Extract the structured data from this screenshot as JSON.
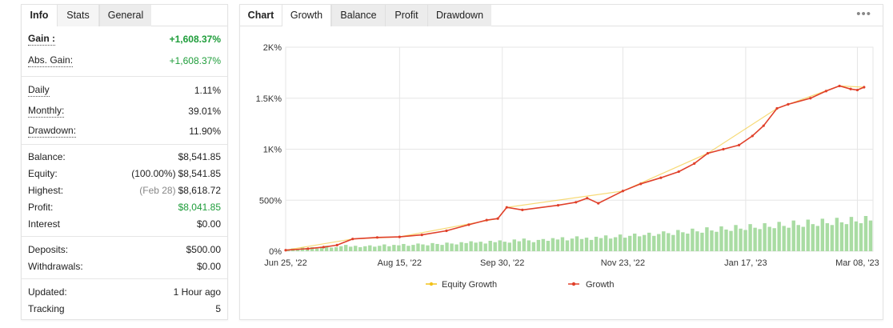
{
  "left_tabs": [
    {
      "label": "Info",
      "state": "active"
    },
    {
      "label": "Stats",
      "state": "stats"
    },
    {
      "label": "General",
      "state": "inactive"
    }
  ],
  "stats": {
    "gain": {
      "label": "Gain :",
      "value": "+1,608.37%"
    },
    "abs_gain": {
      "label": "Abs. Gain:",
      "value": "+1,608.37%"
    },
    "daily": {
      "label": "Daily",
      "value": "1.11%"
    },
    "monthly": {
      "label": "Monthly:",
      "value": "39.01%"
    },
    "drawdown": {
      "label": "Drawdown:",
      "value": "11.90%"
    },
    "balance": {
      "label": "Balance:",
      "value": "$8,541.85"
    },
    "equity": {
      "label": "Equity:",
      "prefix": "(100.00%)",
      "value": "$8,541.85"
    },
    "highest": {
      "label": "Highest:",
      "prefix": "(Feb 28)",
      "value": "$8,618.72"
    },
    "profit": {
      "label": "Profit:",
      "value": "$8,041.85"
    },
    "interest": {
      "label": "Interest",
      "value": "$0.00"
    },
    "deposits": {
      "label": "Deposits:",
      "value": "$500.00"
    },
    "withdrawals": {
      "label": "Withdrawals:",
      "value": "$0.00"
    },
    "updated": {
      "label": "Updated:",
      "value": "1 Hour ago"
    },
    "tracking": {
      "label": "Tracking",
      "value": "5"
    }
  },
  "chart_tabs": {
    "title": "Chart",
    "tabs": [
      "Growth",
      "Balance",
      "Profit",
      "Drawdown"
    ],
    "active": "Growth",
    "menu_icon": "more-dots-icon"
  },
  "colors": {
    "growth_line": "#e0402a",
    "equity_line": "#f2c21b",
    "bars": "#a9dca3",
    "grid": "#e6e6e6",
    "positive": "#1e9d3a"
  },
  "chart_data": {
    "type": "line",
    "title": "",
    "xlabel": "",
    "ylabel": "",
    "ylim": [
      0,
      2000
    ],
    "y_ticks": [
      {
        "value": 0,
        "label": "0%"
      },
      {
        "value": 500,
        "label": "500%"
      },
      {
        "value": 1000,
        "label": "1K%"
      },
      {
        "value": 1500,
        "label": "1.5K%"
      },
      {
        "value": 2000,
        "label": "2K%"
      }
    ],
    "x_range": [
      "2022-06-25",
      "2023-03-15"
    ],
    "x_ticks": [
      {
        "date": "2022-06-25",
        "label": "Jun 25, '22"
      },
      {
        "date": "2022-08-15",
        "label": "Aug 15, '22"
      },
      {
        "date": "2022-09-30",
        "label": "Sep 30, '22"
      },
      {
        "date": "2022-11-23",
        "label": "Nov 23, '22"
      },
      {
        "date": "2023-01-17",
        "label": "Jan 17, '23"
      },
      {
        "date": "2023-03-08",
        "label": "Mar 08, '23"
      }
    ],
    "legend": [
      "Equity Growth",
      "Growth"
    ],
    "legend_position": "bottom-center",
    "series": [
      {
        "name": "Growth",
        "points": [
          [
            "2022-06-25",
            10
          ],
          [
            "2022-07-05",
            25
          ],
          [
            "2022-07-12",
            40
          ],
          [
            "2022-07-18",
            60
          ],
          [
            "2022-07-25",
            120
          ],
          [
            "2022-08-05",
            135
          ],
          [
            "2022-08-15",
            140
          ],
          [
            "2022-08-25",
            160
          ],
          [
            "2022-09-05",
            200
          ],
          [
            "2022-09-15",
            260
          ],
          [
            "2022-09-23",
            305
          ],
          [
            "2022-09-28",
            320
          ],
          [
            "2022-10-02",
            430
          ],
          [
            "2022-10-09",
            405
          ],
          [
            "2022-10-25",
            450
          ],
          [
            "2022-11-02",
            480
          ],
          [
            "2022-11-07",
            520
          ],
          [
            "2022-11-12",
            470
          ],
          [
            "2022-11-23",
            590
          ],
          [
            "2022-12-01",
            660
          ],
          [
            "2022-12-10",
            720
          ],
          [
            "2022-12-18",
            780
          ],
          [
            "2022-12-25",
            860
          ],
          [
            "2022-12-31",
            960
          ],
          [
            "2023-01-07",
            1000
          ],
          [
            "2023-01-14",
            1040
          ],
          [
            "2023-01-20",
            1130
          ],
          [
            "2023-01-25",
            1230
          ],
          [
            "2023-01-31",
            1400
          ],
          [
            "2023-02-05",
            1440
          ],
          [
            "2023-02-15",
            1500
          ],
          [
            "2023-02-22",
            1570
          ],
          [
            "2023-02-28",
            1620
          ],
          [
            "2023-03-05",
            1590
          ],
          [
            "2023-03-08",
            1580
          ],
          [
            "2023-03-11",
            1608
          ]
        ]
      },
      {
        "name": "Equity Growth",
        "points": [
          [
            "2022-06-25",
            10
          ],
          [
            "2022-07-25",
            120
          ],
          [
            "2022-08-15",
            140
          ],
          [
            "2022-09-28",
            320
          ],
          [
            "2022-10-02",
            430
          ],
          [
            "2022-11-23",
            590
          ],
          [
            "2022-12-31",
            960
          ],
          [
            "2023-01-31",
            1400
          ],
          [
            "2023-02-28",
            1620
          ],
          [
            "2023-03-11",
            1608
          ]
        ]
      }
    ],
    "bars_note": "daily trading volume bars, unlabeled",
    "bars": [
      4,
      6,
      5,
      8,
      7,
      9,
      6,
      10,
      12,
      8,
      9,
      11,
      14,
      10,
      12,
      9,
      11,
      13,
      10,
      12,
      15,
      11,
      14,
      13,
      16,
      12,
      14,
      17,
      15,
      13,
      18,
      16,
      14,
      19,
      17,
      15,
      20,
      18,
      22,
      19,
      21,
      17,
      23,
      20,
      24,
      21,
      19,
      26,
      22,
      28,
      24,
      20,
      25,
      27,
      23,
      29,
      26,
      31,
      24,
      28,
      33,
      27,
      30,
      25,
      32,
      29,
      35,
      28,
      31,
      37,
      30,
      34,
      39,
      33,
      36,
      41,
      34,
      38,
      44,
      40,
      36,
      47,
      42,
      39,
      50,
      44,
      41,
      53,
      46,
      43,
      55,
      48,
      45,
      58,
      50,
      47,
      60,
      52,
      49,
      62,
      54,
      51,
      65,
      56,
      52,
      68,
      58,
      54,
      70,
      60,
      56,
      72,
      62,
      58,
      74,
      64,
      60,
      76,
      66,
      62,
      78,
      68
    ]
  }
}
